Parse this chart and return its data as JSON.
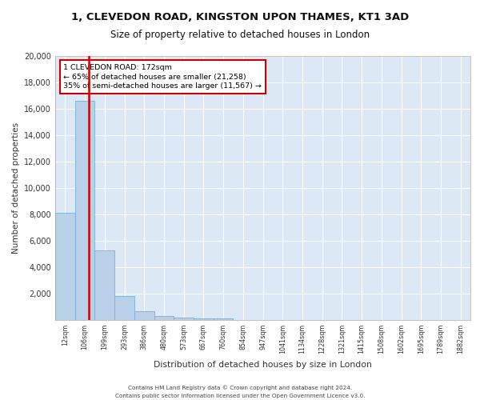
{
  "title1": "1, CLEVEDON ROAD, KINGSTON UPON THAMES, KT1 3AD",
  "title2": "Size of property relative to detached houses in London",
  "xlabel": "Distribution of detached houses by size in London",
  "ylabel": "Number of detached properties",
  "categories": [
    "12sqm",
    "106sqm",
    "199sqm",
    "293sqm",
    "386sqm",
    "480sqm",
    "573sqm",
    "667sqm",
    "760sqm",
    "854sqm",
    "947sqm",
    "1041sqm",
    "1134sqm",
    "1228sqm",
    "1321sqm",
    "1415sqm",
    "1508sqm",
    "1602sqm",
    "1695sqm",
    "1789sqm",
    "1882sqm"
  ],
  "values": [
    8100,
    16600,
    5300,
    1800,
    650,
    320,
    175,
    125,
    100,
    0,
    0,
    0,
    0,
    0,
    0,
    0,
    0,
    0,
    0,
    0,
    0
  ],
  "bar_color": "#b8d0e8",
  "bar_edge_color": "#7aafd4",
  "vline_color": "#cc0000",
  "annotation_box_text": "1 CLEVEDON ROAD: 172sqm\n← 65% of detached houses are smaller (21,258)\n35% of semi-detached houses are larger (11,567) →",
  "annotation_box_facecolor": "#ffffff",
  "annotation_box_edgecolor": "#cc0000",
  "ylim": [
    0,
    20000
  ],
  "yticks": [
    0,
    2000,
    4000,
    6000,
    8000,
    10000,
    12000,
    14000,
    16000,
    18000,
    20000
  ],
  "background_color": "#dce8f5",
  "grid_color": "#ffffff",
  "footer1": "Contains HM Land Registry data © Crown copyright and database right 2024.",
  "footer2": "Contains public sector information licensed under the Open Government Licence v3.0."
}
